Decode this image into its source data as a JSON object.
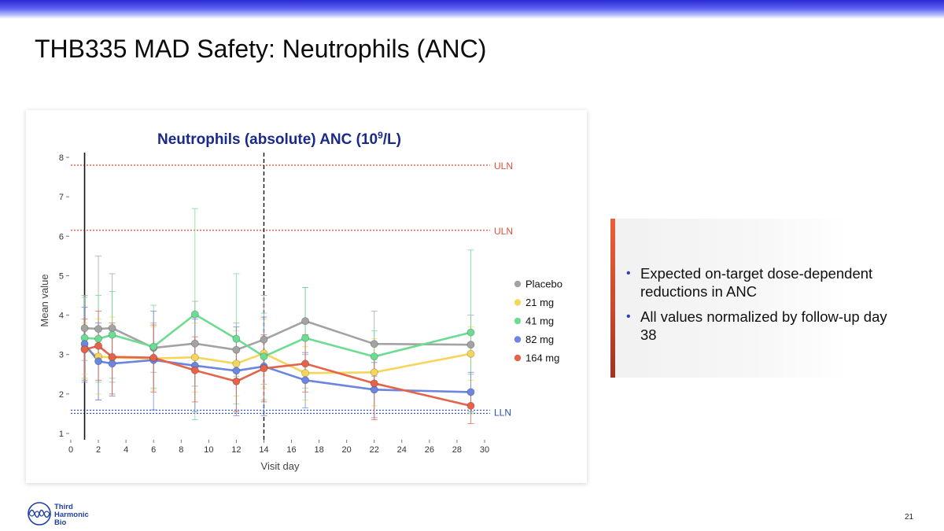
{
  "slide": {
    "title": "THB335 MAD Safety: Neutrophils (ANC)",
    "page_number": "21",
    "logo_lines": [
      "Third",
      "Harmonic",
      "Bio"
    ]
  },
  "callout": {
    "bullets": [
      "Expected on-target dose-dependent reductions in ANC",
      "All values normalized by follow-up day 38"
    ]
  },
  "colors": {
    "Placebo": "#a3a3a3",
    "21 mg": "#f6d65a",
    "41 mg": "#6ddc93",
    "82 mg": "#6b85e0",
    "164 mg": "#e5634b",
    "uln": "#e04e37",
    "lln": "#2b4fb7",
    "title": "#1a2a8a"
  },
  "chart_data": {
    "type": "line",
    "title_main": "Neutrophils (absolute) ANC (10",
    "title_sup": "9",
    "title_end": "/L)",
    "xlabel": "Visit day",
    "ylabel": "Mean value",
    "xlim": [
      0,
      30
    ],
    "ylim": [
      1,
      8
    ],
    "xticks": [
      0,
      2,
      4,
      6,
      8,
      10,
      12,
      14,
      16,
      18,
      20,
      22,
      24,
      26,
      28,
      30
    ],
    "yticks": [
      1,
      2,
      3,
      4,
      5,
      6,
      7,
      8
    ],
    "legend_position": "right",
    "reference_lines": [
      {
        "label": "ULN",
        "value": 7.8
      },
      {
        "label": "ULN",
        "value": 6.15
      },
      {
        "label": "LLN",
        "value": 1.55
      }
    ],
    "vertical_lines": [
      {
        "x": 1,
        "style": "solid"
      },
      {
        "x": 14,
        "style": "dashed"
      }
    ],
    "series": [
      {
        "name": "Placebo",
        "x": [
          1,
          2,
          3,
          6,
          9,
          12,
          14,
          17,
          22,
          29
        ],
        "y": [
          3.67,
          3.65,
          3.67,
          3.17,
          3.28,
          3.12,
          3.38,
          3.85,
          3.27,
          3.25
        ],
        "err_high": [
          4.5,
          5.5,
          5.05,
          3.8,
          4.35,
          3.8,
          4.5,
          4.7,
          4.1,
          4.0
        ],
        "err_low": [
          2.85,
          1.85,
          2.3,
          2.55,
          2.2,
          2.45,
          2.25,
          3.0,
          2.45,
          2.5
        ]
      },
      {
        "name": "21 mg",
        "x": [
          1,
          2,
          3,
          6,
          9,
          12,
          14,
          17,
          22,
          29
        ],
        "y": [
          3.15,
          2.95,
          2.92,
          2.9,
          2.93,
          2.77,
          3.03,
          2.53,
          2.55,
          3.02
        ],
        "err_high": [
          3.8,
          3.9,
          3.95,
          3.7,
          3.8,
          3.6,
          3.9,
          3.2,
          3.4,
          3.7
        ],
        "err_low": [
          2.5,
          2.0,
          1.95,
          2.1,
          2.05,
          1.95,
          2.15,
          1.85,
          1.7,
          2.35
        ]
      },
      {
        "name": "41 mg",
        "x": [
          1,
          2,
          3,
          6,
          9,
          12,
          14,
          17,
          22,
          29
        ],
        "y": [
          3.42,
          3.4,
          3.5,
          3.2,
          4.02,
          3.4,
          2.95,
          3.42,
          2.95,
          3.56
        ],
        "err_high": [
          4.45,
          4.5,
          4.6,
          4.25,
          6.7,
          5.05,
          4.05,
          4.7,
          3.6,
          5.65
        ],
        "err_low": [
          2.4,
          2.3,
          2.4,
          2.15,
          1.35,
          1.75,
          1.85,
          2.15,
          2.3,
          1.5
        ]
      },
      {
        "name": "82 mg",
        "x": [
          1,
          2,
          3,
          6,
          9,
          12,
          14,
          17,
          22,
          29
        ],
        "y": [
          3.27,
          2.83,
          2.77,
          2.86,
          2.72,
          2.59,
          2.7,
          2.35,
          2.11,
          2.05
        ],
        "err_high": [
          4.2,
          3.8,
          3.7,
          4.1,
          3.9,
          3.7,
          3.95,
          3.05,
          2.8,
          2.55
        ],
        "err_low": [
          2.3,
          1.85,
          1.95,
          1.6,
          1.55,
          1.45,
          1.45,
          1.65,
          1.4,
          1.55
        ]
      },
      {
        "name": "164 mg",
        "x": [
          1,
          2,
          3,
          6,
          9,
          12,
          14,
          17,
          22,
          29
        ],
        "y": [
          3.13,
          3.22,
          2.94,
          2.92,
          2.6,
          2.32,
          2.65,
          2.77,
          2.27,
          1.7
        ],
        "err_high": [
          3.9,
          4.1,
          3.8,
          3.75,
          3.45,
          3.15,
          3.5,
          3.5,
          2.95,
          2.1
        ],
        "err_low": [
          2.35,
          2.35,
          2.0,
          2.05,
          1.8,
          1.55,
          1.8,
          2.05,
          1.35,
          1.25
        ]
      }
    ]
  }
}
